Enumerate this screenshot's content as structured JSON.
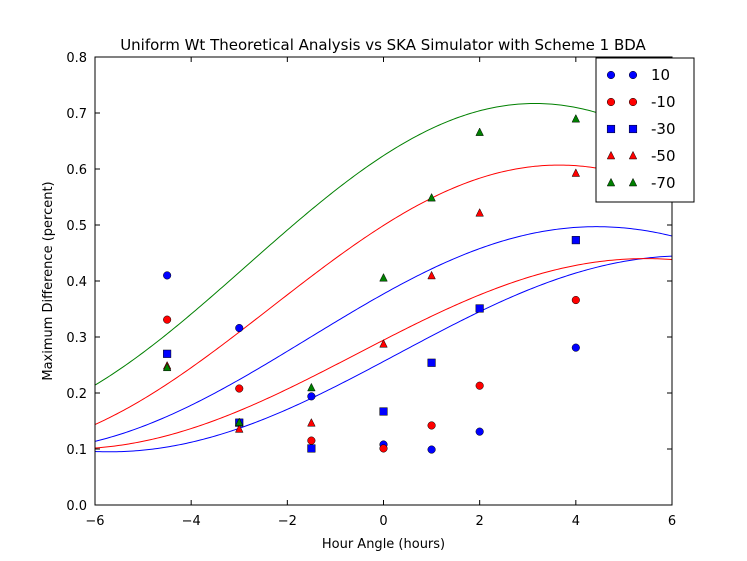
{
  "chart_data": {
    "type": "scatter",
    "title": "Uniform Wt Theoretical Analysis vs SKA Simulator with Scheme 1 BDA",
    "xlabel": "Hour Angle (hours)",
    "ylabel": "Maximum Difference (percent)",
    "xlim": [
      -6,
      6
    ],
    "ylim": [
      0.0,
      0.8
    ],
    "xticks": [
      -6,
      -4,
      -2,
      0,
      2,
      4,
      6
    ],
    "xtick_labels": [
      "−6",
      "−4",
      "−2",
      "0",
      "2",
      "4",
      "6"
    ],
    "yticks": [
      0.0,
      0.1,
      0.2,
      0.3,
      0.4,
      0.5,
      0.6,
      0.7,
      0.8
    ],
    "ytick_labels": [
      "0.0",
      "0.1",
      "0.2",
      "0.3",
      "0.4",
      "0.5",
      "0.6",
      "0.7",
      "0.8"
    ],
    "legend_position": "top-right",
    "series": [
      {
        "name": "10",
        "color": "#0000ff",
        "marker": "circle",
        "x": [
          -4.5,
          -3,
          -1.5,
          0,
          1,
          2,
          4
        ],
        "y": [
          0.41,
          0.316,
          0.194,
          0.108,
          0.099,
          0.131,
          0.281
        ],
        "curve": {
          "mean": 0.27,
          "amp": 0.175,
          "peak": 6.3
        }
      },
      {
        "name": "-10",
        "color": "#ff0000",
        "marker": "circle",
        "x": [
          -4.5,
          -3,
          -1.5,
          0,
          1,
          2,
          4
        ],
        "y": [
          0.331,
          0.208,
          0.115,
          0.101,
          0.142,
          0.213,
          0.366
        ],
        "curve": {
          "mean": 0.27,
          "amp": 0.17,
          "peak": 5.45
        }
      },
      {
        "name": "-30",
        "color": "#0000ff",
        "marker": "square",
        "x": [
          -4.5,
          -3,
          -1.5,
          0,
          1,
          2,
          4
        ],
        "y": [
          0.27,
          0.147,
          0.101,
          0.167,
          0.254,
          0.351,
          0.473
        ],
        "curve": {
          "mean": 0.297,
          "amp": 0.2,
          "peak": 4.43
        }
      },
      {
        "name": "-50",
        "color": "#ff0000",
        "marker": "triangle",
        "x": [
          -4.5,
          -3,
          -1.5,
          0,
          1,
          2,
          4
        ],
        "y": [
          0.248,
          0.135,
          0.146,
          0.287,
          0.409,
          0.521,
          0.592
        ],
        "curve": {
          "mean": 0.352,
          "amp": 0.255,
          "peak": 3.65
        }
      },
      {
        "name": "-70",
        "color": "#008000",
        "marker": "triangle",
        "x": [
          -4.5,
          -3,
          -1.5,
          0,
          1,
          2,
          4
        ],
        "y": [
          0.245,
          0.147,
          0.209,
          0.405,
          0.548,
          0.665,
          0.689
        ],
        "curve": {
          "mean": 0.427,
          "amp": 0.29,
          "peak": 3.15
        }
      }
    ]
  }
}
